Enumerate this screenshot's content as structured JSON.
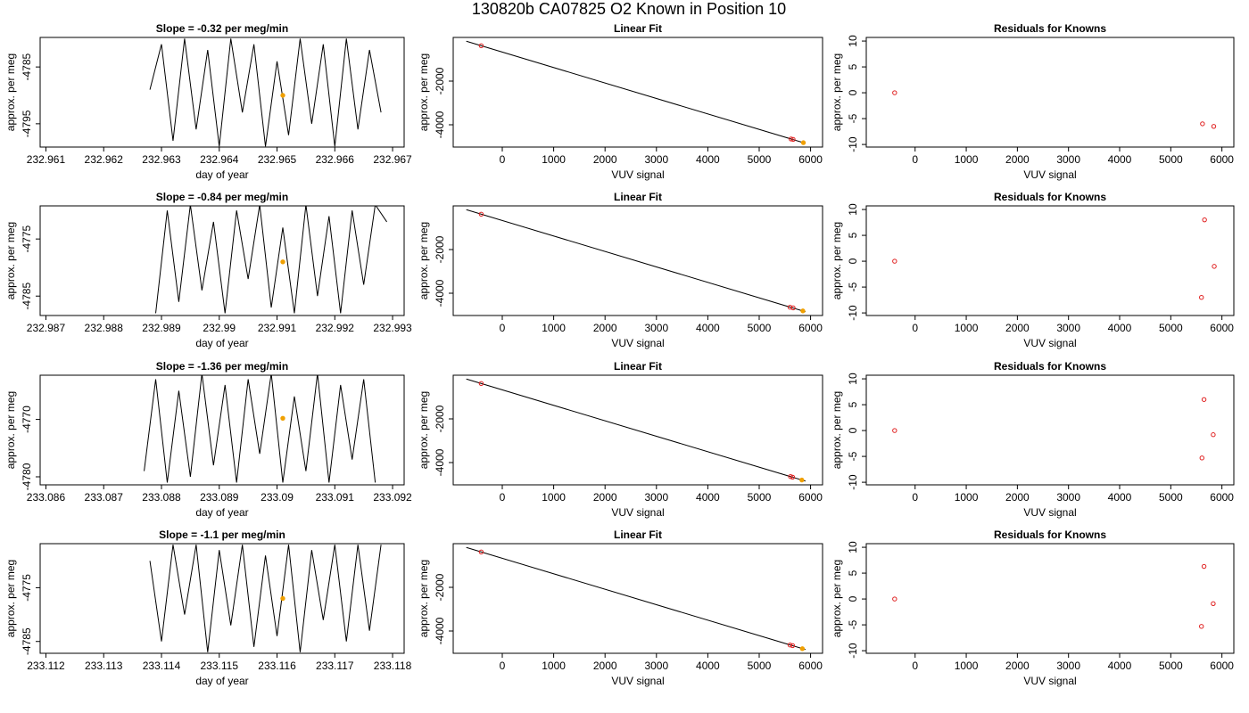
{
  "title": "130820b     CA07825   O2 Known in Position  10",
  "chart_data": [
    {
      "type": "line",
      "title": "Slope =  -0.32  per meg/min",
      "xlabel": "day of year",
      "ylabel": "approx. per meg",
      "xlim": [
        232.9609,
        232.9672
      ],
      "ylim": [
        -4799.1,
        -4779.8
      ],
      "xticks": [
        232.961,
        232.962,
        232.963,
        232.964,
        232.965,
        232.966,
        232.967
      ],
      "yticks": [
        -4785,
        -4795
      ],
      "series": [
        {
          "color": "#000000",
          "mode": "line",
          "x": [
            232.9628,
            232.963,
            232.9632,
            232.9634,
            232.9636,
            232.9638,
            232.964,
            232.9642,
            232.9644,
            232.9646,
            232.9648,
            232.965,
            232.9652,
            232.9654,
            232.9656,
            232.9658,
            232.966,
            232.9662,
            232.9664,
            232.9666,
            232.9668
          ],
          "values": [
            -4789,
            -4781,
            -4798,
            -4780,
            -4796,
            -4782,
            -4799,
            -4780,
            -4793,
            -4781,
            -4799,
            -4784,
            -4797,
            -4780,
            -4795,
            -4781,
            -4799,
            -4780,
            -4796,
            -4782,
            -4793
          ]
        },
        {
          "color": "#f0a000",
          "mode": "points",
          "marker": "filled",
          "x": [
            232.9651
          ],
          "values": [
            -4790
          ]
        }
      ]
    },
    {
      "type": "scatter",
      "title": "Linear Fit",
      "xlabel": "VUV signal",
      "ylabel": "approx. per meg",
      "xlim": [
        -955,
        6233
      ],
      "ylim": [
        -5020,
        0
      ],
      "xticks": [
        0,
        1000,
        2000,
        3000,
        4000,
        5000,
        6000
      ],
      "yticks": [
        -2000,
        -4000
      ],
      "series": [
        {
          "color": "#000000",
          "mode": "line",
          "x": [
            -700,
            5900
          ],
          "values": [
            -175,
            -4848
          ]
        },
        {
          "color": "#e02020",
          "mode": "points",
          "marker": "open",
          "x": [
            -410,
            5620,
            5660
          ],
          "values": [
            -380,
            -4650,
            -4670
          ]
        },
        {
          "color": "#f0a000",
          "mode": "points",
          "marker": "filled",
          "x": [
            5860
          ],
          "values": [
            -4820
          ]
        }
      ]
    },
    {
      "type": "scatter",
      "title": "Residuals for Knowns",
      "xlabel": "VUV signal",
      "ylabel": "approx. per meg",
      "xlim": [
        -955,
        6233
      ],
      "ylim": [
        -10.5,
        10.7
      ],
      "xticks": [
        0,
        1000,
        2000,
        3000,
        4000,
        5000,
        6000
      ],
      "yticks": [
        -10,
        -5,
        0,
        5,
        10
      ],
      "series": [
        {
          "color": "#e02020",
          "mode": "points",
          "marker": "open",
          "x": [
            -400,
            5620,
            5840
          ],
          "values": [
            0,
            -6,
            -6.5
          ]
        }
      ]
    },
    {
      "type": "line",
      "title": "Slope =  -0.84  per meg/min",
      "xlabel": "day of year",
      "ylabel": "approx. per meg",
      "xlim": [
        232.9869,
        232.9932
      ],
      "ylim": [
        -4788.4,
        -4769.2
      ],
      "xticks": [
        232.987,
        232.988,
        232.989,
        232.99,
        232.991,
        232.992,
        232.993
      ],
      "yticks": [
        -4775,
        -4785
      ],
      "series": [
        {
          "color": "#000000",
          "mode": "line",
          "x": [
            232.9889,
            232.9891,
            232.9893,
            232.9895,
            232.9897,
            232.9899,
            232.9901,
            232.9903,
            232.9905,
            232.9907,
            232.9909,
            232.9911,
            232.9913,
            232.9915,
            232.9917,
            232.9919,
            232.9921,
            232.9923,
            232.9925,
            232.9927,
            232.9929
          ],
          "values": [
            -4788,
            -4770,
            -4786,
            -4769,
            -4784,
            -4772,
            -4788,
            -4770,
            -4782,
            -4769,
            -4787,
            -4773,
            -4788,
            -4769,
            -4785,
            -4771,
            -4788,
            -4770,
            -4783,
            -4769,
            -4772
          ]
        },
        {
          "color": "#f0a000",
          "mode": "points",
          "marker": "filled",
          "x": [
            232.9911
          ],
          "values": [
            -4779
          ]
        }
      ]
    },
    {
      "type": "scatter",
      "title": "Linear Fit",
      "xlabel": "VUV signal",
      "ylabel": "approx. per meg",
      "xlim": [
        -955,
        6233
      ],
      "ylim": [
        -5020,
        0
      ],
      "xticks": [
        0,
        1000,
        2000,
        3000,
        4000,
        5000,
        6000
      ],
      "yticks": [
        -2000,
        -4000
      ],
      "series": [
        {
          "color": "#000000",
          "mode": "line",
          "x": [
            -700,
            5900
          ],
          "values": [
            -175,
            -4848
          ]
        },
        {
          "color": "#e02020",
          "mode": "points",
          "marker": "open",
          "x": [
            -410,
            5600,
            5660
          ],
          "values": [
            -380,
            -4640,
            -4670
          ]
        },
        {
          "color": "#f0a000",
          "mode": "points",
          "marker": "filled",
          "x": [
            5850
          ],
          "values": [
            -4810
          ]
        }
      ]
    },
    {
      "type": "scatter",
      "title": "Residuals for Knowns",
      "xlabel": "VUV signal",
      "ylabel": "approx. per meg",
      "xlim": [
        -955,
        6233
      ],
      "ylim": [
        -10.5,
        10.7
      ],
      "xticks": [
        0,
        1000,
        2000,
        3000,
        4000,
        5000,
        6000
      ],
      "yticks": [
        -10,
        -5,
        0,
        5,
        10
      ],
      "series": [
        {
          "color": "#e02020",
          "mode": "points",
          "marker": "open",
          "x": [
            -400,
            5660,
            5600,
            5850
          ],
          "values": [
            0,
            8,
            -7,
            -1
          ]
        }
      ]
    },
    {
      "type": "line",
      "title": "Slope =  -1.36  per meg/min",
      "xlabel": "day of year",
      "ylabel": "approx. per meg",
      "xlim": [
        233.0859,
        233.0922
      ],
      "ylim": [
        -4781.4,
        -4762.3
      ],
      "xticks": [
        233.086,
        233.087,
        233.088,
        233.089,
        233.09,
        233.091,
        233.092
      ],
      "yticks": [
        -4770,
        -4780
      ],
      "series": [
        {
          "color": "#000000",
          "mode": "line",
          "x": [
            233.0877,
            233.0879,
            233.0881,
            233.0883,
            233.0885,
            233.0887,
            233.0889,
            233.0891,
            233.0893,
            233.0895,
            233.0897,
            233.0899,
            233.0901,
            233.0903,
            233.0905,
            233.0907,
            233.0909,
            233.0911,
            233.0913,
            233.0915,
            233.0917
          ],
          "values": [
            -4779,
            -4763,
            -4781,
            -4765,
            -4780,
            -4762,
            -4778,
            -4764,
            -4781,
            -4763,
            -4776,
            -4762,
            -4781,
            -4766,
            -4779,
            -4762,
            -4781,
            -4764,
            -4777,
            -4763,
            -4781
          ]
        },
        {
          "color": "#f0a000",
          "mode": "points",
          "marker": "filled",
          "x": [
            233.0901
          ],
          "values": [
            -4769.8
          ]
        }
      ]
    },
    {
      "type": "scatter",
      "title": "Linear Fit",
      "xlabel": "VUV signal",
      "ylabel": "approx. per meg",
      "xlim": [
        -955,
        6233
      ],
      "ylim": [
        -5020,
        0
      ],
      "xticks": [
        0,
        1000,
        2000,
        3000,
        4000,
        5000,
        6000
      ],
      "yticks": [
        -2000,
        -4000
      ],
      "series": [
        {
          "color": "#000000",
          "mode": "line",
          "x": [
            -700,
            5900
          ],
          "values": [
            -175,
            -4848
          ]
        },
        {
          "color": "#e02020",
          "mode": "points",
          "marker": "open",
          "x": [
            -410,
            5610,
            5650
          ],
          "values": [
            -380,
            -4640,
            -4670
          ]
        },
        {
          "color": "#f0a000",
          "mode": "points",
          "marker": "filled",
          "x": [
            5830
          ],
          "values": [
            -4800
          ]
        }
      ]
    },
    {
      "type": "scatter",
      "title": "Residuals for Knowns",
      "xlabel": "VUV signal",
      "ylabel": "approx. per meg",
      "xlim": [
        -955,
        6233
      ],
      "ylim": [
        -10.5,
        10.7
      ],
      "xticks": [
        0,
        1000,
        2000,
        3000,
        4000,
        5000,
        6000
      ],
      "yticks": [
        -10,
        -5,
        0,
        5,
        10
      ],
      "series": [
        {
          "color": "#e02020",
          "mode": "points",
          "marker": "open",
          "x": [
            -400,
            5650,
            5610,
            5830
          ],
          "values": [
            0,
            6,
            -5.3,
            -0.8
          ]
        }
      ]
    },
    {
      "type": "line",
      "title": "Slope =  -1.1  per meg/min",
      "xlabel": "day of year",
      "ylabel": "approx. per meg",
      "xlim": [
        233.1119,
        233.1182
      ],
      "ylim": [
        -4787.2,
        -4766.8
      ],
      "xticks": [
        233.112,
        233.113,
        233.114,
        233.115,
        233.116,
        233.117,
        233.118
      ],
      "yticks": [
        -4775,
        -4785
      ],
      "series": [
        {
          "color": "#000000",
          "mode": "line",
          "x": [
            233.1138,
            233.114,
            233.1142,
            233.1144,
            233.1146,
            233.1148,
            233.115,
            233.1152,
            233.1154,
            233.1156,
            233.1158,
            233.116,
            233.1162,
            233.1164,
            233.1166,
            233.1168,
            233.117,
            233.1172,
            233.1174,
            233.1176,
            233.1178
          ],
          "values": [
            -4770,
            -4785,
            -4767,
            -4780,
            -4767,
            -4787,
            -4768,
            -4782,
            -4767,
            -4786,
            -4769,
            -4784,
            -4767,
            -4787,
            -4768,
            -4781,
            -4767,
            -4785,
            -4767,
            -4783,
            -4767
          ]
        },
        {
          "color": "#f0a000",
          "mode": "points",
          "marker": "filled",
          "x": [
            233.1161
          ],
          "values": [
            -4777
          ]
        }
      ]
    },
    {
      "type": "scatter",
      "title": "Linear Fit",
      "xlabel": "VUV signal",
      "ylabel": "approx. per meg",
      "xlim": [
        -955,
        6233
      ],
      "ylim": [
        -5020,
        0
      ],
      "xticks": [
        0,
        1000,
        2000,
        3000,
        4000,
        5000,
        6000
      ],
      "yticks": [
        -2000,
        -4000
      ],
      "series": [
        {
          "color": "#000000",
          "mode": "line",
          "x": [
            -700,
            5900
          ],
          "values": [
            -175,
            -4848
          ]
        },
        {
          "color": "#e02020",
          "mode": "points",
          "marker": "open",
          "x": [
            -410,
            5600,
            5650
          ],
          "values": [
            -380,
            -4640,
            -4670
          ]
        },
        {
          "color": "#f0a000",
          "mode": "points",
          "marker": "filled",
          "x": [
            5840
          ],
          "values": [
            -4810
          ]
        }
      ]
    },
    {
      "type": "scatter",
      "title": "Residuals for Knowns",
      "xlabel": "VUV signal",
      "ylabel": "approx. per meg",
      "xlim": [
        -955,
        6233
      ],
      "ylim": [
        -10.5,
        10.7
      ],
      "xticks": [
        0,
        1000,
        2000,
        3000,
        4000,
        5000,
        6000
      ],
      "yticks": [
        -10,
        -5,
        0,
        5,
        10
      ],
      "series": [
        {
          "color": "#e02020",
          "mode": "points",
          "marker": "open",
          "x": [
            -400,
            5650,
            5600,
            5830
          ],
          "values": [
            0,
            6.3,
            -5.3,
            -0.9
          ]
        }
      ]
    }
  ]
}
